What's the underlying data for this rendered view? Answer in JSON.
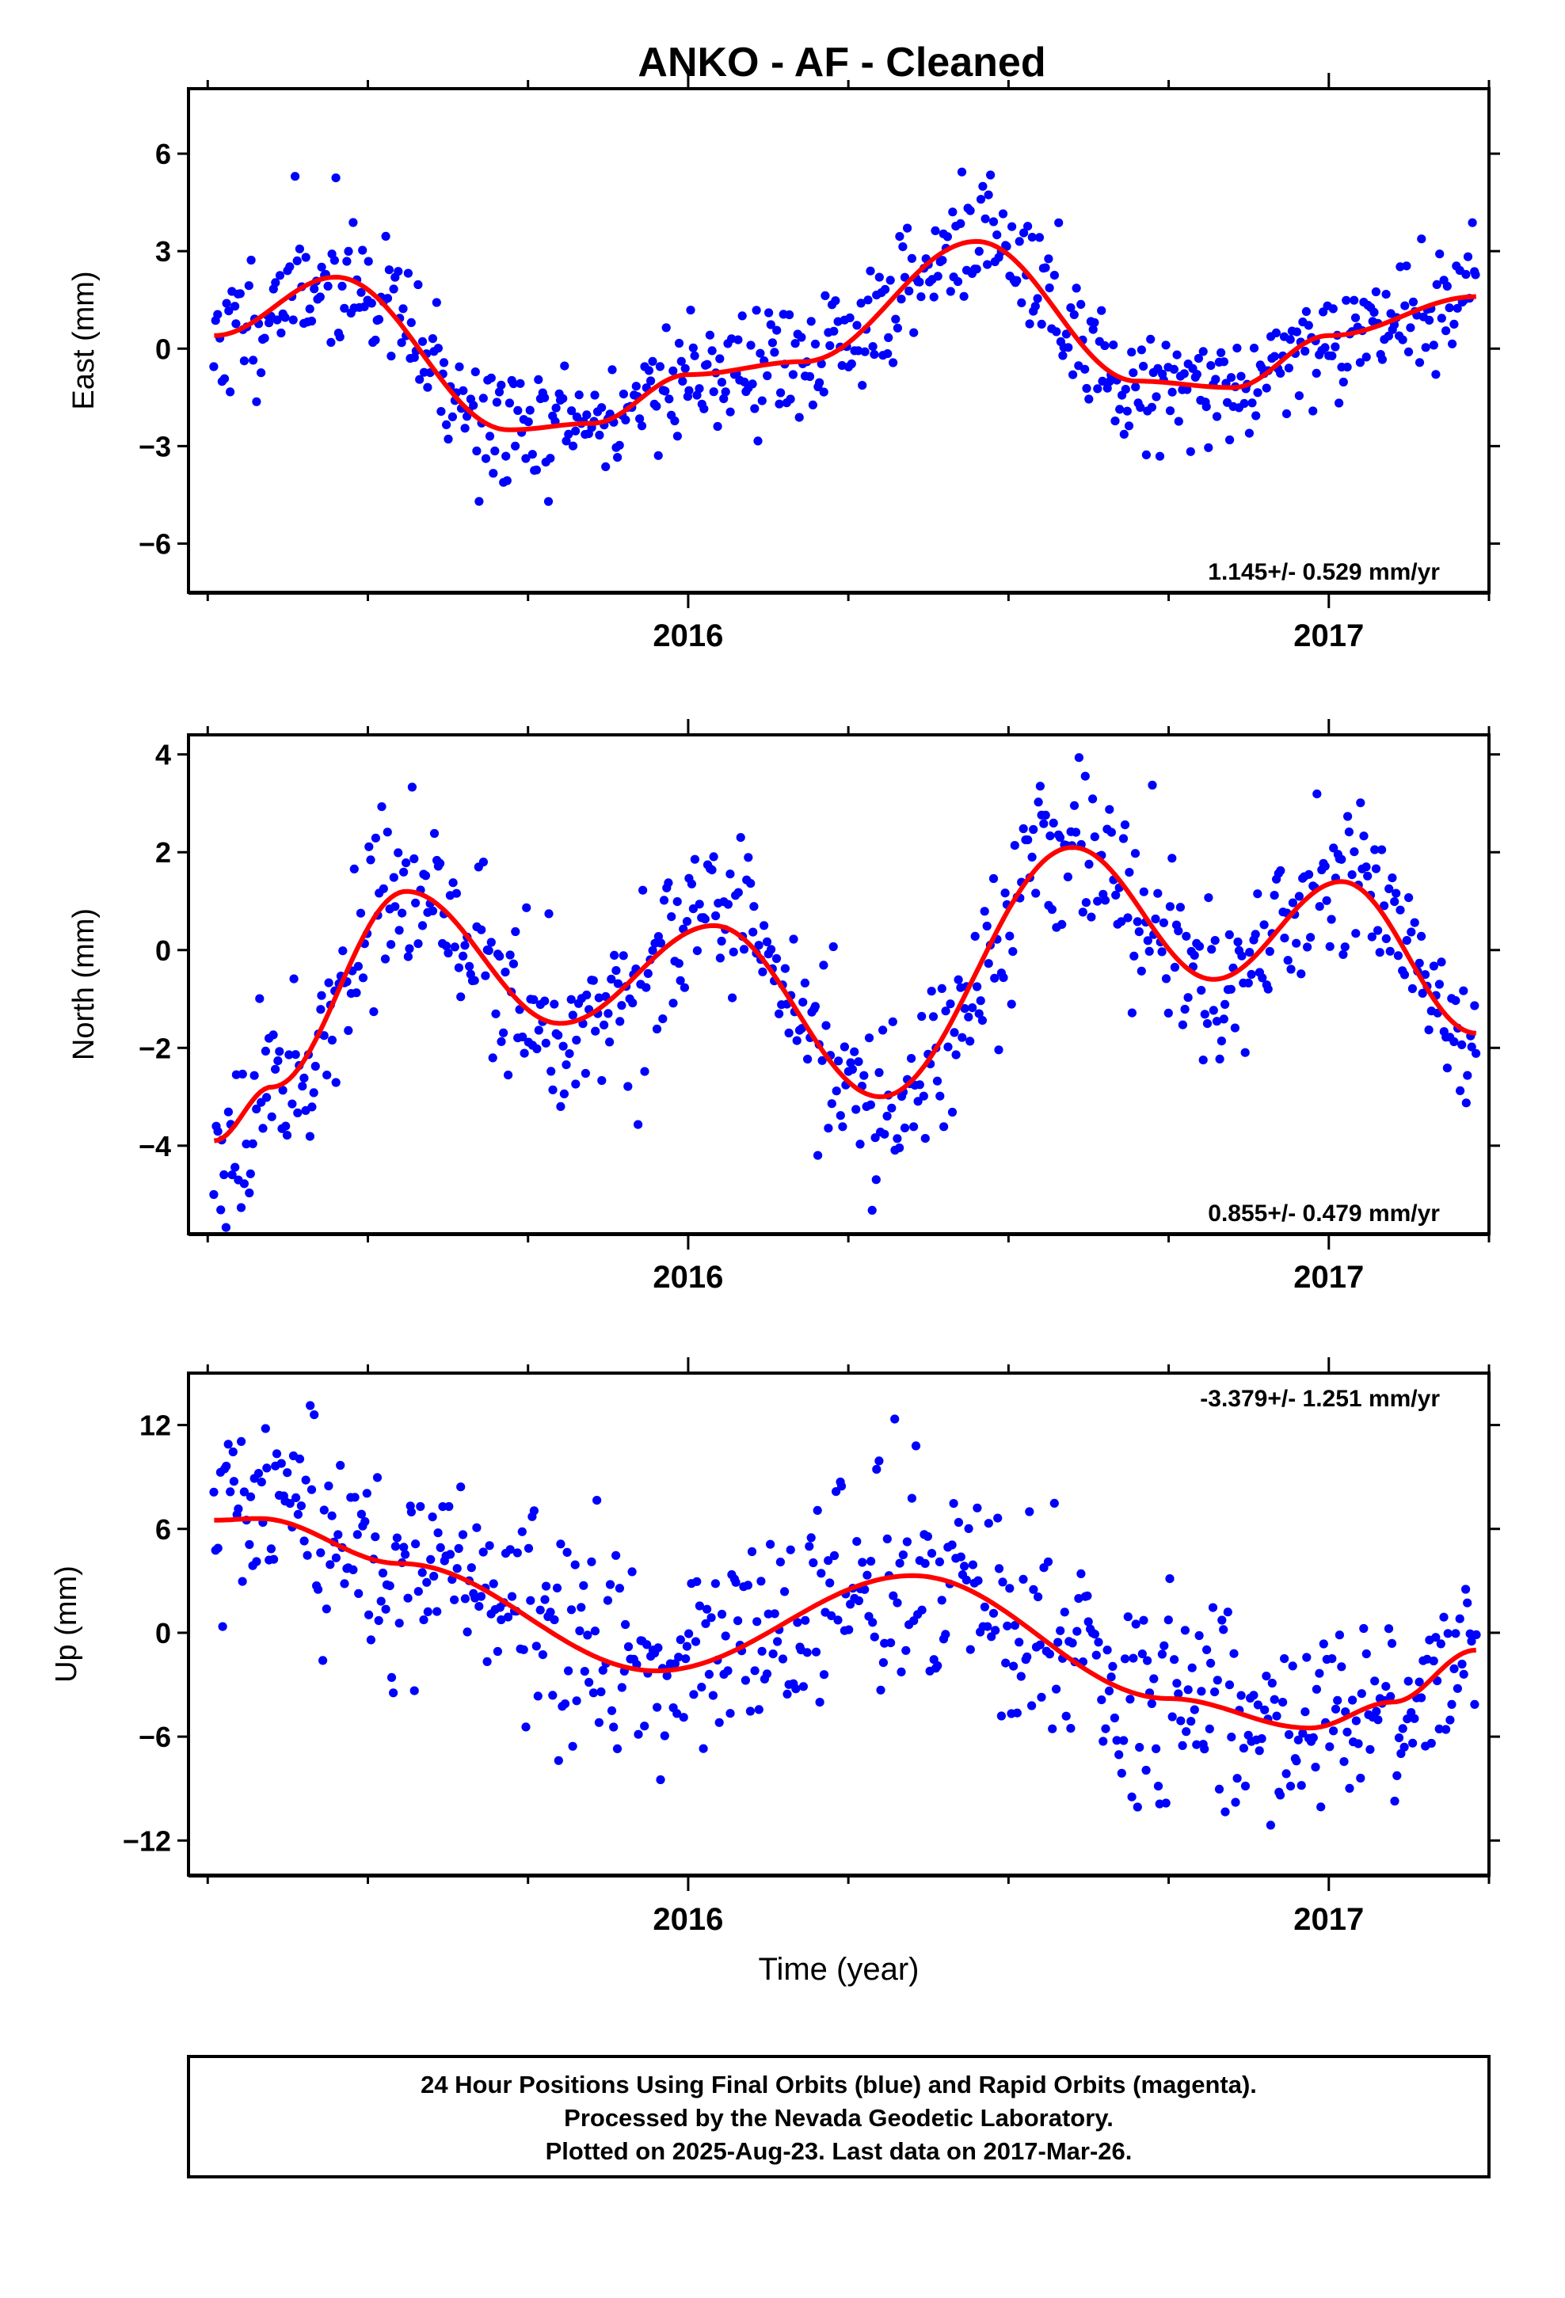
{
  "title": "ANKO  - AF - Cleaned",
  "colors": {
    "final_orbits": "#0000ff",
    "rapid_orbits": "#ff00ff",
    "fit": "#ff0000",
    "frame": "#000000"
  },
  "footer": {
    "line1": "24 Hour Positions Using Final Orbits (blue) and Rapid Orbits (magenta).",
    "line2": "Processed by the Nevada Geodetic Laboratory.",
    "line3": "Plotted on 2025-Aug-23. Last data on 2017-Mar-26."
  },
  "chart_data": [
    {
      "type": "scatter",
      "ylabel": "East (mm)",
      "xlabel": "",
      "rate_label": "1.145+/- 0.529 mm/yr",
      "xlim": [
        2015.22,
        2017.25
      ],
      "ylim": [
        -7.5,
        8.0
      ],
      "yticks": [
        -6,
        -3,
        0,
        3,
        6
      ],
      "xticks": [
        2016,
        2017
      ],
      "xtick_labels": [
        "2016",
        "2017"
      ],
      "minor_xticks": [
        2015.25,
        2015.5,
        2015.75,
        2016.25,
        2016.5,
        2016.75,
        2017.25
      ],
      "grid": false,
      "series": [
        {
          "kind": "points",
          "x_start": 2015.26,
          "x_end": 2017.23,
          "count": 620,
          "seed": 11,
          "noise": 1.0
        },
        {
          "kind": "fit",
          "knots_x": [
            2015.26,
            2015.45,
            2015.72,
            2015.85,
            2016.0,
            2016.18,
            2016.45,
            2016.7,
            2016.85,
            2017.0,
            2017.23
          ],
          "knots_y": [
            0.4,
            2.2,
            -2.5,
            -2.3,
            -0.8,
            -0.4,
            3.3,
            -1.0,
            -1.2,
            0.4,
            1.6
          ]
        }
      ]
    },
    {
      "type": "scatter",
      "ylabel": "North (mm)",
      "xlabel": "",
      "rate_label": "0.855+/- 0.479 mm/yr",
      "xlim": [
        2015.22,
        2017.25
      ],
      "ylim": [
        -5.8,
        4.4
      ],
      "yticks": [
        -4,
        -2,
        0,
        2,
        4
      ],
      "xticks": [
        2016,
        2017
      ],
      "xtick_labels": [
        "2016",
        "2017"
      ],
      "minor_xticks": [
        2015.25,
        2015.5,
        2015.75,
        2016.25,
        2016.5,
        2016.75,
        2017.25
      ],
      "grid": false,
      "series": [
        {
          "kind": "points",
          "x_start": 2015.26,
          "x_end": 2017.23,
          "count": 620,
          "seed": 23,
          "noise": 0.85
        },
        {
          "kind": "fit",
          "knots_x": [
            2015.26,
            2015.35,
            2015.56,
            2015.8,
            2016.04,
            2016.3,
            2016.6,
            2016.82,
            2017.02,
            2017.23
          ],
          "knots_y": [
            -3.9,
            -2.8,
            1.2,
            -1.5,
            0.5,
            -3.0,
            2.1,
            -0.6,
            1.4,
            -1.7
          ]
        }
      ]
    },
    {
      "type": "scatter",
      "ylabel": "Up (mm)",
      "xlabel": "Time (year)",
      "rate_label": "-3.379+/- 1.251 mm/yr",
      "xlim": [
        2015.22,
        2017.25
      ],
      "ylim": [
        -14.0,
        15.0
      ],
      "yticks": [
        -12,
        -6,
        0,
        6,
        12
      ],
      "xticks": [
        2016,
        2017
      ],
      "xtick_labels": [
        "2016",
        "2017"
      ],
      "minor_xticks": [
        2015.25,
        2015.5,
        2015.75,
        2016.25,
        2016.5,
        2016.75,
        2017.25
      ],
      "grid": false,
      "series": [
        {
          "kind": "points",
          "x_start": 2015.26,
          "x_end": 2017.23,
          "count": 620,
          "seed": 37,
          "noise": 3.0
        },
        {
          "kind": "fit",
          "knots_x": [
            2015.26,
            2015.33,
            2015.55,
            2015.95,
            2016.35,
            2016.75,
            2016.97,
            2017.1,
            2017.23
          ],
          "knots_y": [
            6.5,
            6.6,
            4.0,
            -2.2,
            3.3,
            -3.8,
            -5.5,
            -4.0,
            -1.0
          ]
        }
      ]
    }
  ]
}
